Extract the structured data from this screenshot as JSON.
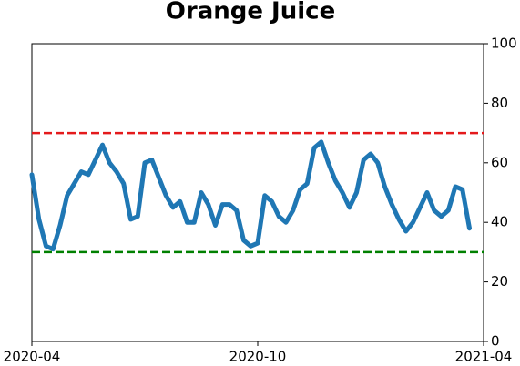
{
  "chart_data": {
    "type": "line",
    "title": "Orange Juice",
    "xlim": [
      "2020-04",
      "2021-04"
    ],
    "xticks": [
      "2020-04",
      "2020-10",
      "2021-04"
    ],
    "ylim": [
      0,
      100
    ],
    "yticks": [
      0,
      20,
      40,
      60,
      80,
      100
    ],
    "yaxis_side": "right",
    "series": [
      {
        "color": "#1f77b4",
        "values": [
          56,
          41,
          32,
          31,
          39,
          49,
          53,
          57,
          56,
          61,
          66,
          60,
          57,
          53,
          41,
          42,
          60,
          61,
          55,
          49,
          45,
          47,
          40,
          40,
          50,
          46,
          39,
          46,
          46,
          44,
          34,
          32,
          33,
          49,
          47,
          42,
          40,
          44,
          51,
          53,
          65,
          67,
          60,
          54,
          50,
          45,
          50,
          61,
          63,
          60,
          52,
          46,
          41,
          37,
          40,
          45,
          50,
          44,
          42,
          44,
          52,
          51,
          38,
          null,
          null
        ]
      }
    ],
    "hlines": [
      {
        "value": 70,
        "color": "#e41a1c"
      },
      {
        "value": 30,
        "color": "#008000"
      }
    ]
  }
}
